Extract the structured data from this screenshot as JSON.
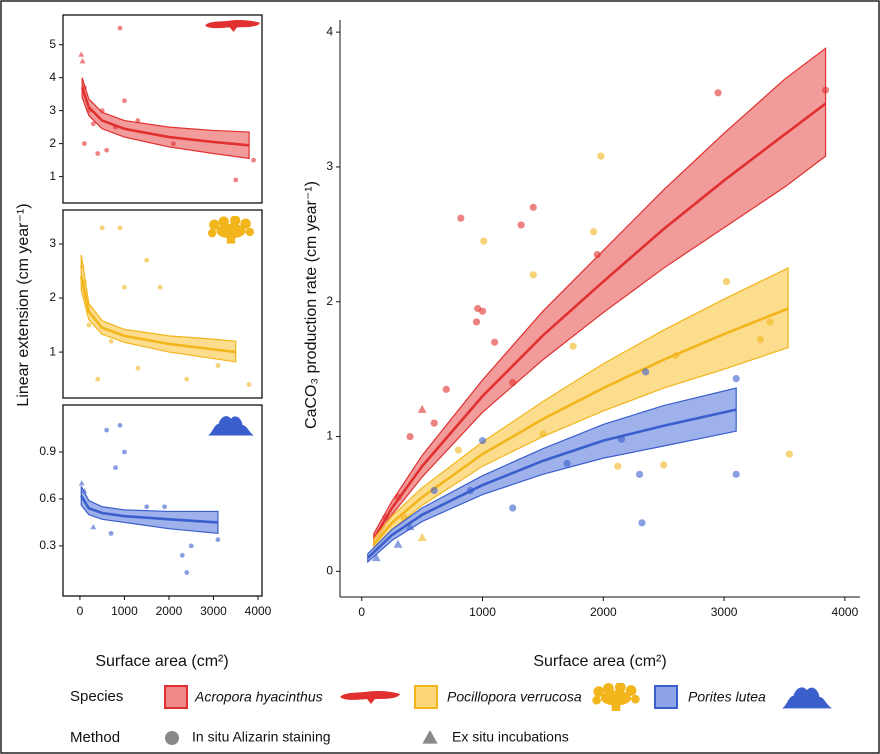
{
  "chart_data": [
    {
      "type": "scatter",
      "frame": true,
      "ylabel": "Linear extension (cm year⁻¹)",
      "xlim": [
        -380,
        4090
      ],
      "ylim": [
        0.2,
        5.9
      ],
      "yticks": [
        1,
        2,
        3,
        4,
        5
      ],
      "series": [
        {
          "color": "#e0302f",
          "fill": "#f08a8a",
          "fit": {
            "x": [
              50,
              200,
              500,
              1000,
              2000,
              3000,
              3800
            ],
            "values": [
              3.7,
              3.1,
              2.7,
              2.45,
              2.2,
              2.05,
              1.95
            ],
            "lower": [
              3.4,
              2.85,
              2.45,
              2.2,
              1.9,
              1.7,
              1.55
            ],
            "upper": [
              4.0,
              3.35,
              2.95,
              2.7,
              2.5,
              2.4,
              2.35
            ]
          },
          "points": {
            "x": [
              30,
              60,
              100,
              200,
              300,
              500,
              800,
              1000,
              1300,
              900,
              3500,
              3900,
              100,
              400,
              600,
              2100
            ],
            "values": [
              4.7,
              4.5,
              3.7,
              3.0,
              2.6,
              3.0,
              2.5,
              3.3,
              2.7,
              5.5,
              0.9,
              1.5,
              2.0,
              1.7,
              1.8,
              2.0
            ],
            "markers": [
              "triangle",
              "triangle",
              "circle",
              "circle",
              "circle",
              "circle",
              "circle",
              "circle",
              "circle",
              "circle",
              "circle",
              "circle",
              "circle",
              "circle",
              "circle",
              "circle"
            ]
          }
        }
      ]
    },
    {
      "type": "scatter",
      "frame": true,
      "xlim": [
        -380,
        4090
      ],
      "ylim": [
        0.15,
        3.63
      ],
      "yticks": [
        1,
        2,
        3
      ],
      "series": [
        {
          "color": "#f2b51c",
          "fill": "#fbd77a",
          "fit": {
            "x": [
              30,
              200,
              500,
              1000,
              2000,
              3000,
              3500
            ],
            "values": [
              2.4,
              1.75,
              1.45,
              1.3,
              1.15,
              1.05,
              1.0
            ],
            "lower": [
              2.15,
              1.6,
              1.33,
              1.18,
              1.0,
              0.88,
              0.82
            ],
            "upper": [
              2.8,
              1.9,
              1.58,
              1.42,
              1.3,
              1.24,
              1.2
            ]
          },
          "points": {
            "x": [
              50,
              100,
              500,
              900,
              1500,
              1000,
              1800,
              400,
              700,
              2400,
              3800,
              3100,
              1300,
              200
            ],
            "values": [
              2.6,
              2.3,
              3.3,
              3.3,
              2.7,
              2.2,
              2.2,
              0.5,
              1.2,
              0.5,
              0.4,
              0.75,
              0.7,
              1.5
            ],
            "markers": [
              "triangle",
              "circle",
              "circle",
              "circle",
              "circle",
              "circle",
              "circle",
              "circle",
              "circle",
              "circle",
              "circle",
              "circle",
              "circle",
              "circle"
            ]
          }
        }
      ]
    },
    {
      "type": "scatter",
      "frame": true,
      "xlabel": "Surface area (cm²)",
      "xlim": [
        -380,
        4090
      ],
      "ylim": [
        -0.02,
        1.2
      ],
      "xticks": [
        0,
        1000,
        2000,
        3000,
        4000
      ],
      "yticks": [
        0.3,
        0.6,
        0.9
      ],
      "series": [
        {
          "color": "#3a5fcd",
          "fill": "#8ea3e8",
          "fit": {
            "x": [
              30,
              200,
              500,
              1000,
              2000,
              3100
            ],
            "values": [
              0.62,
              0.54,
              0.51,
              0.49,
              0.47,
              0.45
            ],
            "lower": [
              0.56,
              0.5,
              0.47,
              0.45,
              0.41,
              0.38
            ],
            "upper": [
              0.68,
              0.59,
              0.55,
              0.53,
              0.52,
              0.52
            ]
          },
          "points": {
            "x": [
              40,
              100,
              900,
              600,
              1000,
              800,
              2300,
              2400,
              2500,
              3100,
              1500,
              300,
              700,
              1900
            ],
            "values": [
              0.7,
              0.65,
              1.07,
              1.04,
              0.9,
              0.8,
              0.24,
              0.13,
              0.3,
              0.34,
              0.55,
              0.42,
              0.38,
              0.55
            ],
            "markers": [
              "triangle",
              "triangle",
              "circle",
              "circle",
              "circle",
              "circle",
              "circle",
              "circle",
              "circle",
              "circle",
              "circle",
              "triangle",
              "circle",
              "circle"
            ]
          }
        }
      ]
    },
    {
      "type": "scatter",
      "frame": false,
      "ylabel": "CaCO₃ production rate (cm year⁻¹)",
      "xlabel": "Surface area (cm²)",
      "xlim": [
        -180,
        4125
      ],
      "ylim": [
        -0.19,
        4.09
      ],
      "xticks": [
        0,
        1000,
        2000,
        3000,
        4000
      ],
      "yticks": [
        0,
        1,
        2,
        3,
        4
      ],
      "series": [
        {
          "name": "Acropora hyacinthus",
          "color": "#e0302f",
          "fill": "#f08a8a",
          "fit": {
            "x": [
              100,
              250,
              500,
              1000,
              1500,
              2000,
              2500,
              3000,
              3500,
              3840
            ],
            "values": [
              0.24,
              0.47,
              0.78,
              1.3,
              1.75,
              2.15,
              2.54,
              2.9,
              3.24,
              3.47
            ],
            "lower": [
              0.2,
              0.42,
              0.7,
              1.18,
              1.57,
              1.92,
              2.25,
              2.55,
              2.85,
              3.08
            ],
            "upper": [
              0.28,
              0.52,
              0.86,
              1.42,
              1.93,
              2.38,
              2.83,
              3.25,
              3.65,
              3.88
            ]
          },
          "points": {
            "x": [
              820,
              1320,
              1420,
              1000,
              950,
              960,
              1100,
              2950,
              3840,
              1950,
              400,
              600,
              300,
              200,
              500,
              150,
              700,
              1250
            ],
            "values": [
              2.62,
              2.57,
              2.7,
              1.93,
              1.85,
              1.95,
              1.7,
              3.55,
              3.57,
              2.35,
              1.0,
              1.1,
              0.55,
              0.4,
              1.2,
              0.3,
              1.35,
              1.4
            ],
            "markers": [
              "circle",
              "circle",
              "circle",
              "circle",
              "circle",
              "circle",
              "circle",
              "circle",
              "circle",
              "circle",
              "circle",
              "circle",
              "circle",
              "circle",
              "triangle",
              "triangle",
              "circle",
              "circle"
            ]
          }
        },
        {
          "name": "Pocillopora verrucosa",
          "color": "#f2b51c",
          "fill": "#fbd77a",
          "fit": {
            "x": [
              100,
              250,
              500,
              1000,
              1500,
              2000,
              2500,
              3000,
              3530
            ],
            "values": [
              0.2,
              0.36,
              0.55,
              0.87,
              1.13,
              1.36,
              1.57,
              1.76,
              1.95
            ],
            "lower": [
              0.16,
              0.31,
              0.49,
              0.78,
              1.0,
              1.19,
              1.36,
              1.5,
              1.66
            ],
            "upper": [
              0.24,
              0.41,
              0.62,
              0.96,
              1.26,
              1.54,
              1.79,
              2.02,
              2.25
            ]
          },
          "points": {
            "x": [
              1980,
              1420,
              1010,
              1920,
              3540,
              3020,
              3380,
              3300,
              2600,
              2500,
              2120,
              1750,
              500,
              350,
              800,
              1500
            ],
            "values": [
              3.08,
              2.2,
              2.45,
              2.52,
              0.87,
              2.15,
              1.85,
              1.72,
              1.6,
              0.79,
              0.78,
              1.67,
              0.25,
              0.4,
              0.9,
              1.02
            ],
            "markers": [
              "circle",
              "circle",
              "circle",
              "circle",
              "circle",
              "circle",
              "circle",
              "circle",
              "circle",
              "circle",
              "circle",
              "circle",
              "triangle",
              "circle",
              "circle",
              "circle"
            ]
          }
        },
        {
          "name": "Porites lutea",
          "color": "#3a5fcd",
          "fill": "#8ea3e8",
          "fit": {
            "x": [
              50,
              250,
              500,
              1000,
              1500,
              2000,
              2500,
              3100
            ],
            "values": [
              0.1,
              0.27,
              0.42,
              0.64,
              0.82,
              0.97,
              1.08,
              1.2
            ],
            "lower": [
              0.07,
              0.23,
              0.37,
              0.57,
              0.72,
              0.84,
              0.93,
              1.04
            ],
            "upper": [
              0.13,
              0.31,
              0.47,
              0.71,
              0.91,
              1.09,
              1.23,
              1.36
            ]
          },
          "points": {
            "x": [
              3100,
              3100,
              2350,
              2320,
              2300,
              2150,
              1000,
              1250,
              1700,
              600,
              400,
              120,
              300,
              900
            ],
            "values": [
              1.43,
              0.72,
              1.48,
              0.36,
              0.72,
              0.98,
              0.97,
              0.47,
              0.8,
              0.6,
              0.33,
              0.1,
              0.2,
              0.6
            ],
            "markers": [
              "circle",
              "circle",
              "circle",
              "circle",
              "circle",
              "circle",
              "circle",
              "circle",
              "circle",
              "circle",
              "triangle",
              "triangle",
              "triangle",
              "circle"
            ]
          }
        }
      ]
    }
  ],
  "legend": {
    "species_title": "Species",
    "method_title": "Method",
    "methods": [
      {
        "name": "In situ Alizarin staining",
        "marker": "circle"
      },
      {
        "name": "Ex situ incubations",
        "marker": "triangle"
      }
    ]
  }
}
